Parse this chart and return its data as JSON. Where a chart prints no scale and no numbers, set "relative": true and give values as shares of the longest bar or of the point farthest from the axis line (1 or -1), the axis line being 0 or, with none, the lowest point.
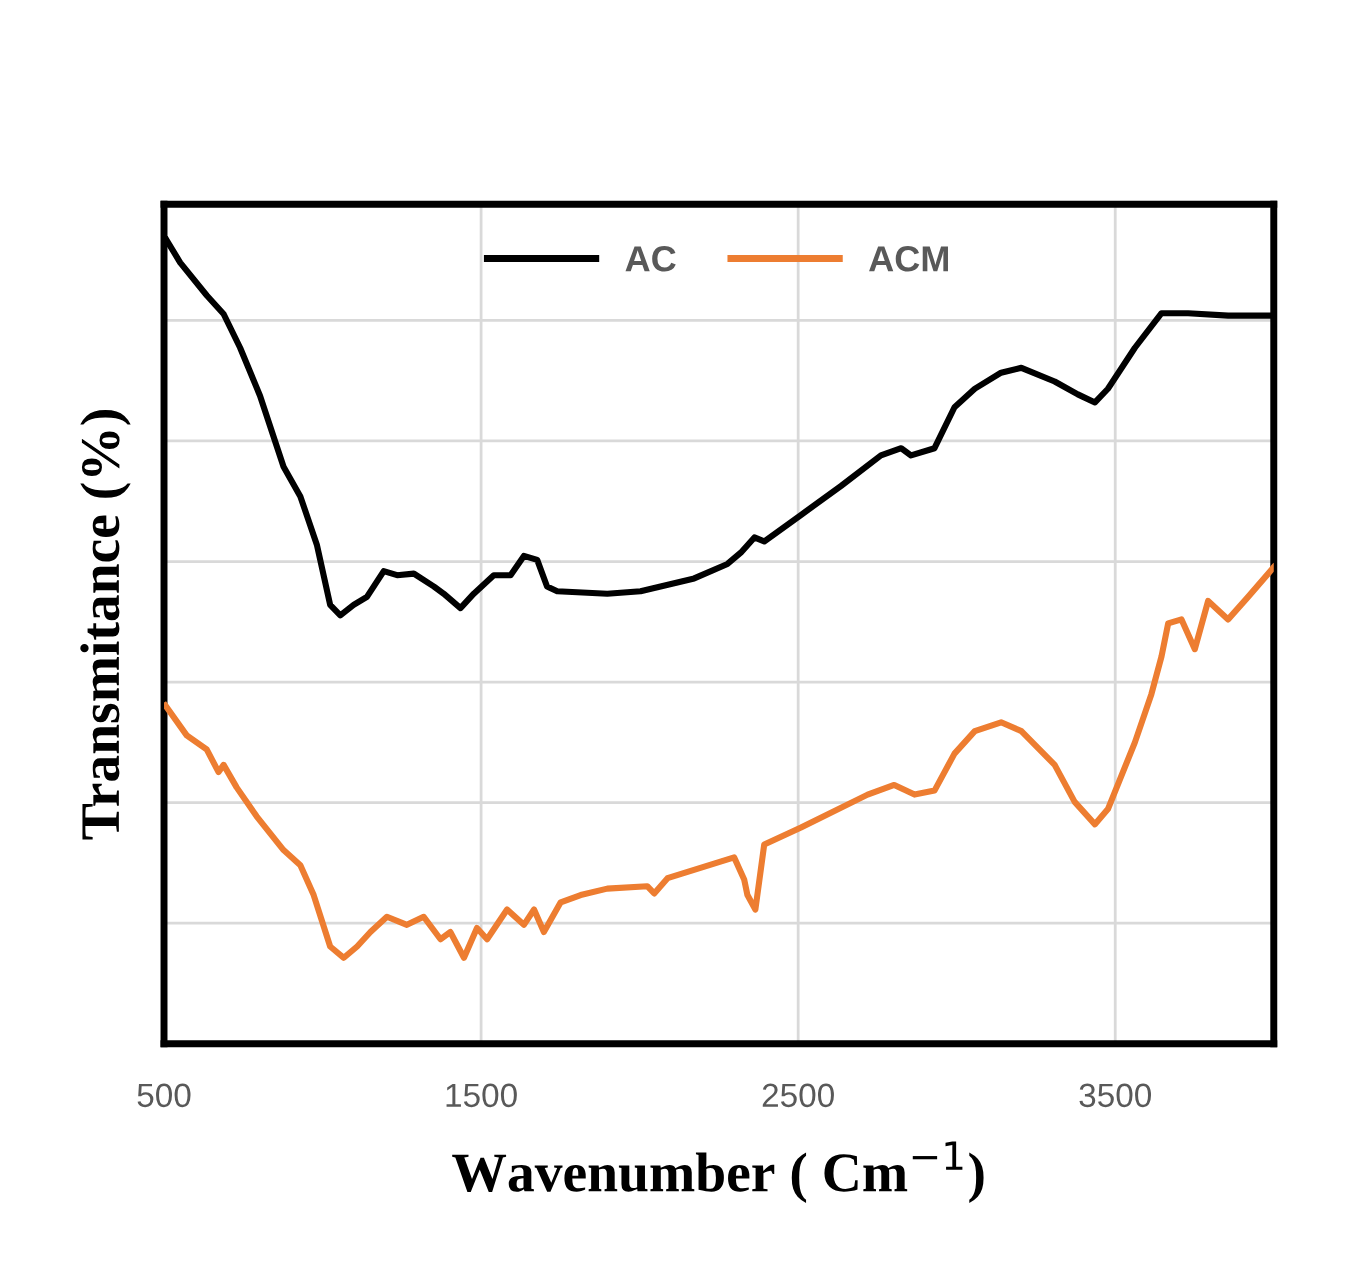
{
  "chart_data": {
    "type": "line",
    "xlabel": "Wavenumber ( Cm$^{−1}$)",
    "ylabel": "Transmitance (%)",
    "relative": true,
    "xlim": [
      500,
      4000
    ],
    "xticks": [
      500,
      1500,
      2500,
      3500
    ],
    "grid": true,
    "legend": "top",
    "marker": "none",
    "line_style": "solid",
    "series": [
      {
        "name": "AC",
        "color": "#000000",
        "x": [
          508,
          551,
          635,
          688,
          740,
          803,
          877,
          930,
          982,
          1024,
          1056,
          1098,
          1140,
          1193,
          1235,
          1288,
          1351,
          1382,
          1435,
          1477,
          1540,
          1593,
          1635,
          1677,
          1708,
          1740,
          1898,
          2003,
          2172,
          2277,
          2319,
          2362,
          2393,
          2509,
          2635,
          2761,
          2825,
          2856,
          2930,
          2993,
          3057,
          3140,
          3204,
          3309,
          3382,
          3436,
          3477,
          3562,
          3646,
          3730,
          3856,
          4000
        ],
        "values": [
          1.0,
          0.972,
          0.931,
          0.908,
          0.866,
          0.806,
          0.718,
          0.681,
          0.621,
          0.546,
          0.533,
          0.546,
          0.556,
          0.588,
          0.583,
          0.585,
          0.569,
          0.56,
          0.542,
          0.56,
          0.583,
          0.583,
          0.607,
          0.602,
          0.569,
          0.563,
          0.56,
          0.563,
          0.579,
          0.597,
          0.611,
          0.63,
          0.625,
          0.658,
          0.694,
          0.732,
          0.741,
          0.732,
          0.741,
          0.792,
          0.815,
          0.835,
          0.841,
          0.824,
          0.808,
          0.798,
          0.815,
          0.866,
          0.909,
          0.909,
          0.906,
          0.906
        ]
      },
      {
        "name": "ACM",
        "color": "#ed7d31",
        "x": [
          504,
          571,
          635,
          672,
          688,
          729,
          792,
          877,
          930,
          972,
          1024,
          1067,
          1109,
          1151,
          1203,
          1266,
          1319,
          1372,
          1403,
          1446,
          1487,
          1519,
          1582,
          1635,
          1667,
          1698,
          1751,
          1814,
          1898,
          2024,
          2046,
          2088,
          2298,
          2330,
          2340,
          2365,
          2393,
          2509,
          2719,
          2803,
          2867,
          2930,
          2993,
          3057,
          3140,
          3204,
          3309,
          3372,
          3436,
          3477,
          3562,
          3614,
          3646,
          3667,
          3709,
          3751,
          3793,
          3856,
          3919,
          4000
        ],
        "values": [
          0.421,
          0.384,
          0.366,
          0.338,
          0.347,
          0.319,
          0.283,
          0.241,
          0.222,
          0.185,
          0.121,
          0.107,
          0.121,
          0.139,
          0.158,
          0.148,
          0.158,
          0.13,
          0.139,
          0.107,
          0.144,
          0.13,
          0.167,
          0.148,
          0.167,
          0.139,
          0.176,
          0.185,
          0.193,
          0.196,
          0.187,
          0.206,
          0.232,
          0.204,
          0.185,
          0.167,
          0.248,
          0.269,
          0.31,
          0.322,
          0.31,
          0.315,
          0.361,
          0.389,
          0.4,
          0.389,
          0.347,
          0.301,
          0.273,
          0.292,
          0.375,
          0.435,
          0.482,
          0.523,
          0.528,
          0.491,
          0.551,
          0.528,
          0.556,
          0.593
        ]
      }
    ]
  }
}
